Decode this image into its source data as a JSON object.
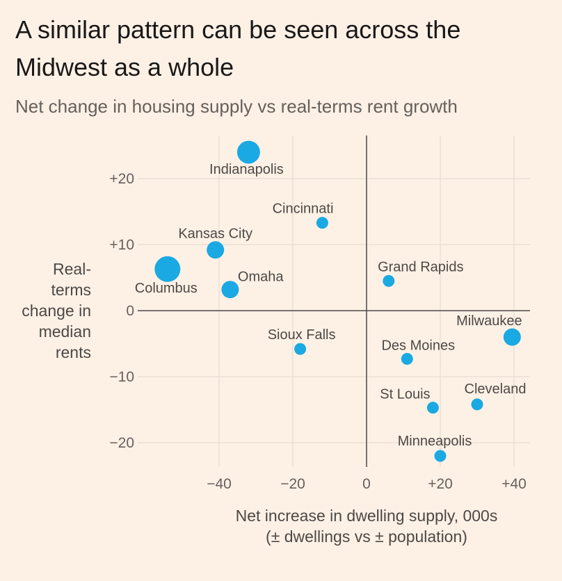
{
  "header": {
    "title": "A similar pattern can be seen across the Midwest as a whole",
    "subtitle": "Net change in housing supply vs real-terms rent growth"
  },
  "chart_data": {
    "type": "scatter",
    "xlabel": "Net increase in dwelling supply, 000s",
    "xlabel_note": "(± dwellings vs ± population)",
    "ylabel": [
      "Real-",
      "terms",
      "change in",
      "median",
      "rents"
    ],
    "xlim": [
      -60,
      44
    ],
    "ylim": [
      -24,
      26
    ],
    "x_ticks": [
      -40,
      -20,
      0,
      20,
      40
    ],
    "x_tick_labels": [
      "−40",
      "−20",
      "0",
      "+20",
      "+40"
    ],
    "y_ticks": [
      20,
      10,
      0,
      -10,
      -20
    ],
    "y_tick_labels": [
      "+20",
      "+10",
      "0",
      "−10",
      "−20"
    ],
    "grid": true,
    "point_color": "#1aa9e3",
    "points": [
      {
        "label": "Indianapolis",
        "x": -32,
        "y": 24,
        "size": "large"
      },
      {
        "label": "Cincinnati",
        "x": -12,
        "y": 13.3,
        "size": "small"
      },
      {
        "label": "Kansas City",
        "x": -41,
        "y": 9.2,
        "size": "medium"
      },
      {
        "label": "Columbus",
        "x": -54,
        "y": 6.3,
        "size": "xlarge"
      },
      {
        "label": "Omaha",
        "x": -37,
        "y": 3.2,
        "size": "medium"
      },
      {
        "label": "Grand Rapids",
        "x": 6,
        "y": 4.5,
        "size": "small"
      },
      {
        "label": "Sioux Falls",
        "x": -18,
        "y": -5.8,
        "size": "small"
      },
      {
        "label": "Des Moines",
        "x": 11,
        "y": -7.3,
        "size": "small"
      },
      {
        "label": "Milwaukee",
        "x": 39.5,
        "y": -4,
        "size": "medium"
      },
      {
        "label": "St Louis",
        "x": 18,
        "y": -14.7,
        "size": "small"
      },
      {
        "label": "Cleveland",
        "x": 30,
        "y": -14.2,
        "size": "small"
      },
      {
        "label": "Minneapolis",
        "x": 20,
        "y": -22,
        "size": "small"
      }
    ]
  }
}
